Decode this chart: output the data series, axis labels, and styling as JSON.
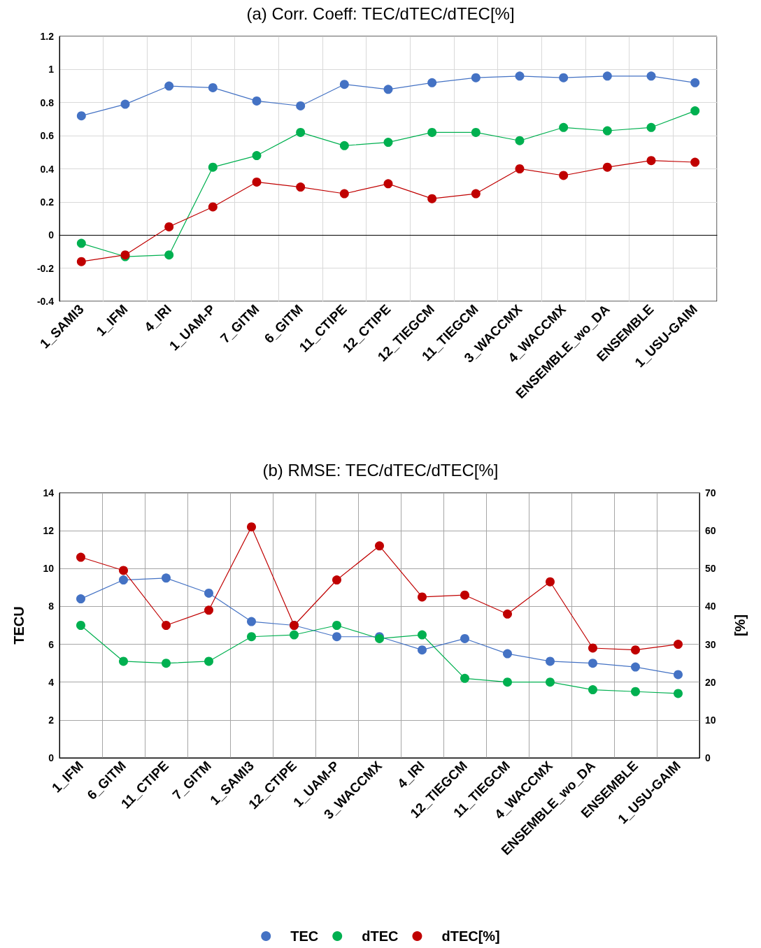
{
  "chart_data": [
    {
      "type": "line",
      "title": "(a) Corr. Coeff: TEC/dTEC/dTEC[%]",
      "categories": [
        "1_SAMI3",
        "1_IFM",
        "4_IRI",
        "1_UAM-P",
        "7_GITM",
        "6_GITM",
        "11_CTIPE",
        "12_CTIPE",
        "12_TIEGCM",
        "11_TIEGCM",
        "3_WACCMX",
        "4_WACCMX",
        "ENSEMBLE_wo_DA",
        "ENSEMBLE",
        "1_USU-GAIM"
      ],
      "series": [
        {
          "color": "#4472c4",
          "values": [
            0.72,
            0.79,
            0.9,
            0.89,
            0.81,
            0.78,
            0.91,
            0.88,
            0.92,
            0.95,
            0.96,
            0.95,
            0.96,
            0.96,
            0.92
          ]
        },
        {
          "color": "#00b050",
          "values": [
            -0.05,
            -0.13,
            -0.12,
            0.41,
            0.48,
            0.62,
            0.54,
            0.56,
            0.62,
            0.62,
            0.57,
            0.65,
            0.63,
            0.65,
            0.75
          ]
        },
        {
          "color": "#c00000",
          "values": [
            -0.16,
            -0.12,
            0.05,
            0.17,
            0.32,
            0.29,
            0.25,
            0.31,
            0.22,
            0.25,
            0.4,
            0.36,
            0.41,
            0.45,
            0.44
          ]
        }
      ],
      "ylim": [
        -0.4,
        1.2
      ],
      "yticks": [
        -0.4,
        -0.2,
        0,
        0.2,
        0.4,
        0.6,
        0.8,
        1,
        1.2
      ],
      "grid": true,
      "marker": "circle",
      "line_style": "solid",
      "legend": false
    },
    {
      "type": "line",
      "title": "(b) RMSE: TEC/dTEC/dTEC[%]",
      "ylabel": "TECU",
      "y2label": "[%]",
      "categories": [
        "1_IFM",
        "6_GITM",
        "11_CTIPE",
        "7_GITM",
        "1_SAMI3",
        "12_CTIPE",
        "1_UAM-P",
        "3_WACCMX",
        "4_IRI",
        "12_TIEGCM",
        "11_TIEGCM",
        "4_WACCMX",
        "ENSEMBLE_wo_DA",
        "ENSEMBLE",
        "1_USU-GAIM"
      ],
      "series": [
        {
          "name": "TEC",
          "color": "#4472c4",
          "values": [
            8.4,
            9.4,
            9.5,
            8.7,
            7.2,
            7.0,
            6.4,
            6.4,
            5.7,
            6.3,
            5.5,
            5.1,
            5.0,
            4.8,
            4.4
          ]
        },
        {
          "name": "dTEC",
          "color": "#00b050",
          "values": [
            7.0,
            5.1,
            5.0,
            5.1,
            6.4,
            6.5,
            7.0,
            6.3,
            6.5,
            4.2,
            4.0,
            4.0,
            3.6,
            3.5,
            3.4
          ]
        },
        {
          "name": "dTEC[%]",
          "color": "#c00000",
          "axis": "y2",
          "values": [
            53,
            49.5,
            35,
            39,
            61,
            35,
            47,
            56,
            42.5,
            43,
            38,
            46.5,
            29,
            28.5,
            30
          ]
        }
      ],
      "ylim": [
        0,
        14
      ],
      "yticks": [
        0,
        2,
        4,
        6,
        8,
        10,
        12,
        14
      ],
      "y2lim": [
        0,
        70
      ],
      "y2ticks": [
        0,
        10,
        20,
        30,
        40,
        50,
        60,
        70
      ],
      "grid": true,
      "marker": "circle",
      "line_style": "solid",
      "legend": "bottom"
    }
  ]
}
